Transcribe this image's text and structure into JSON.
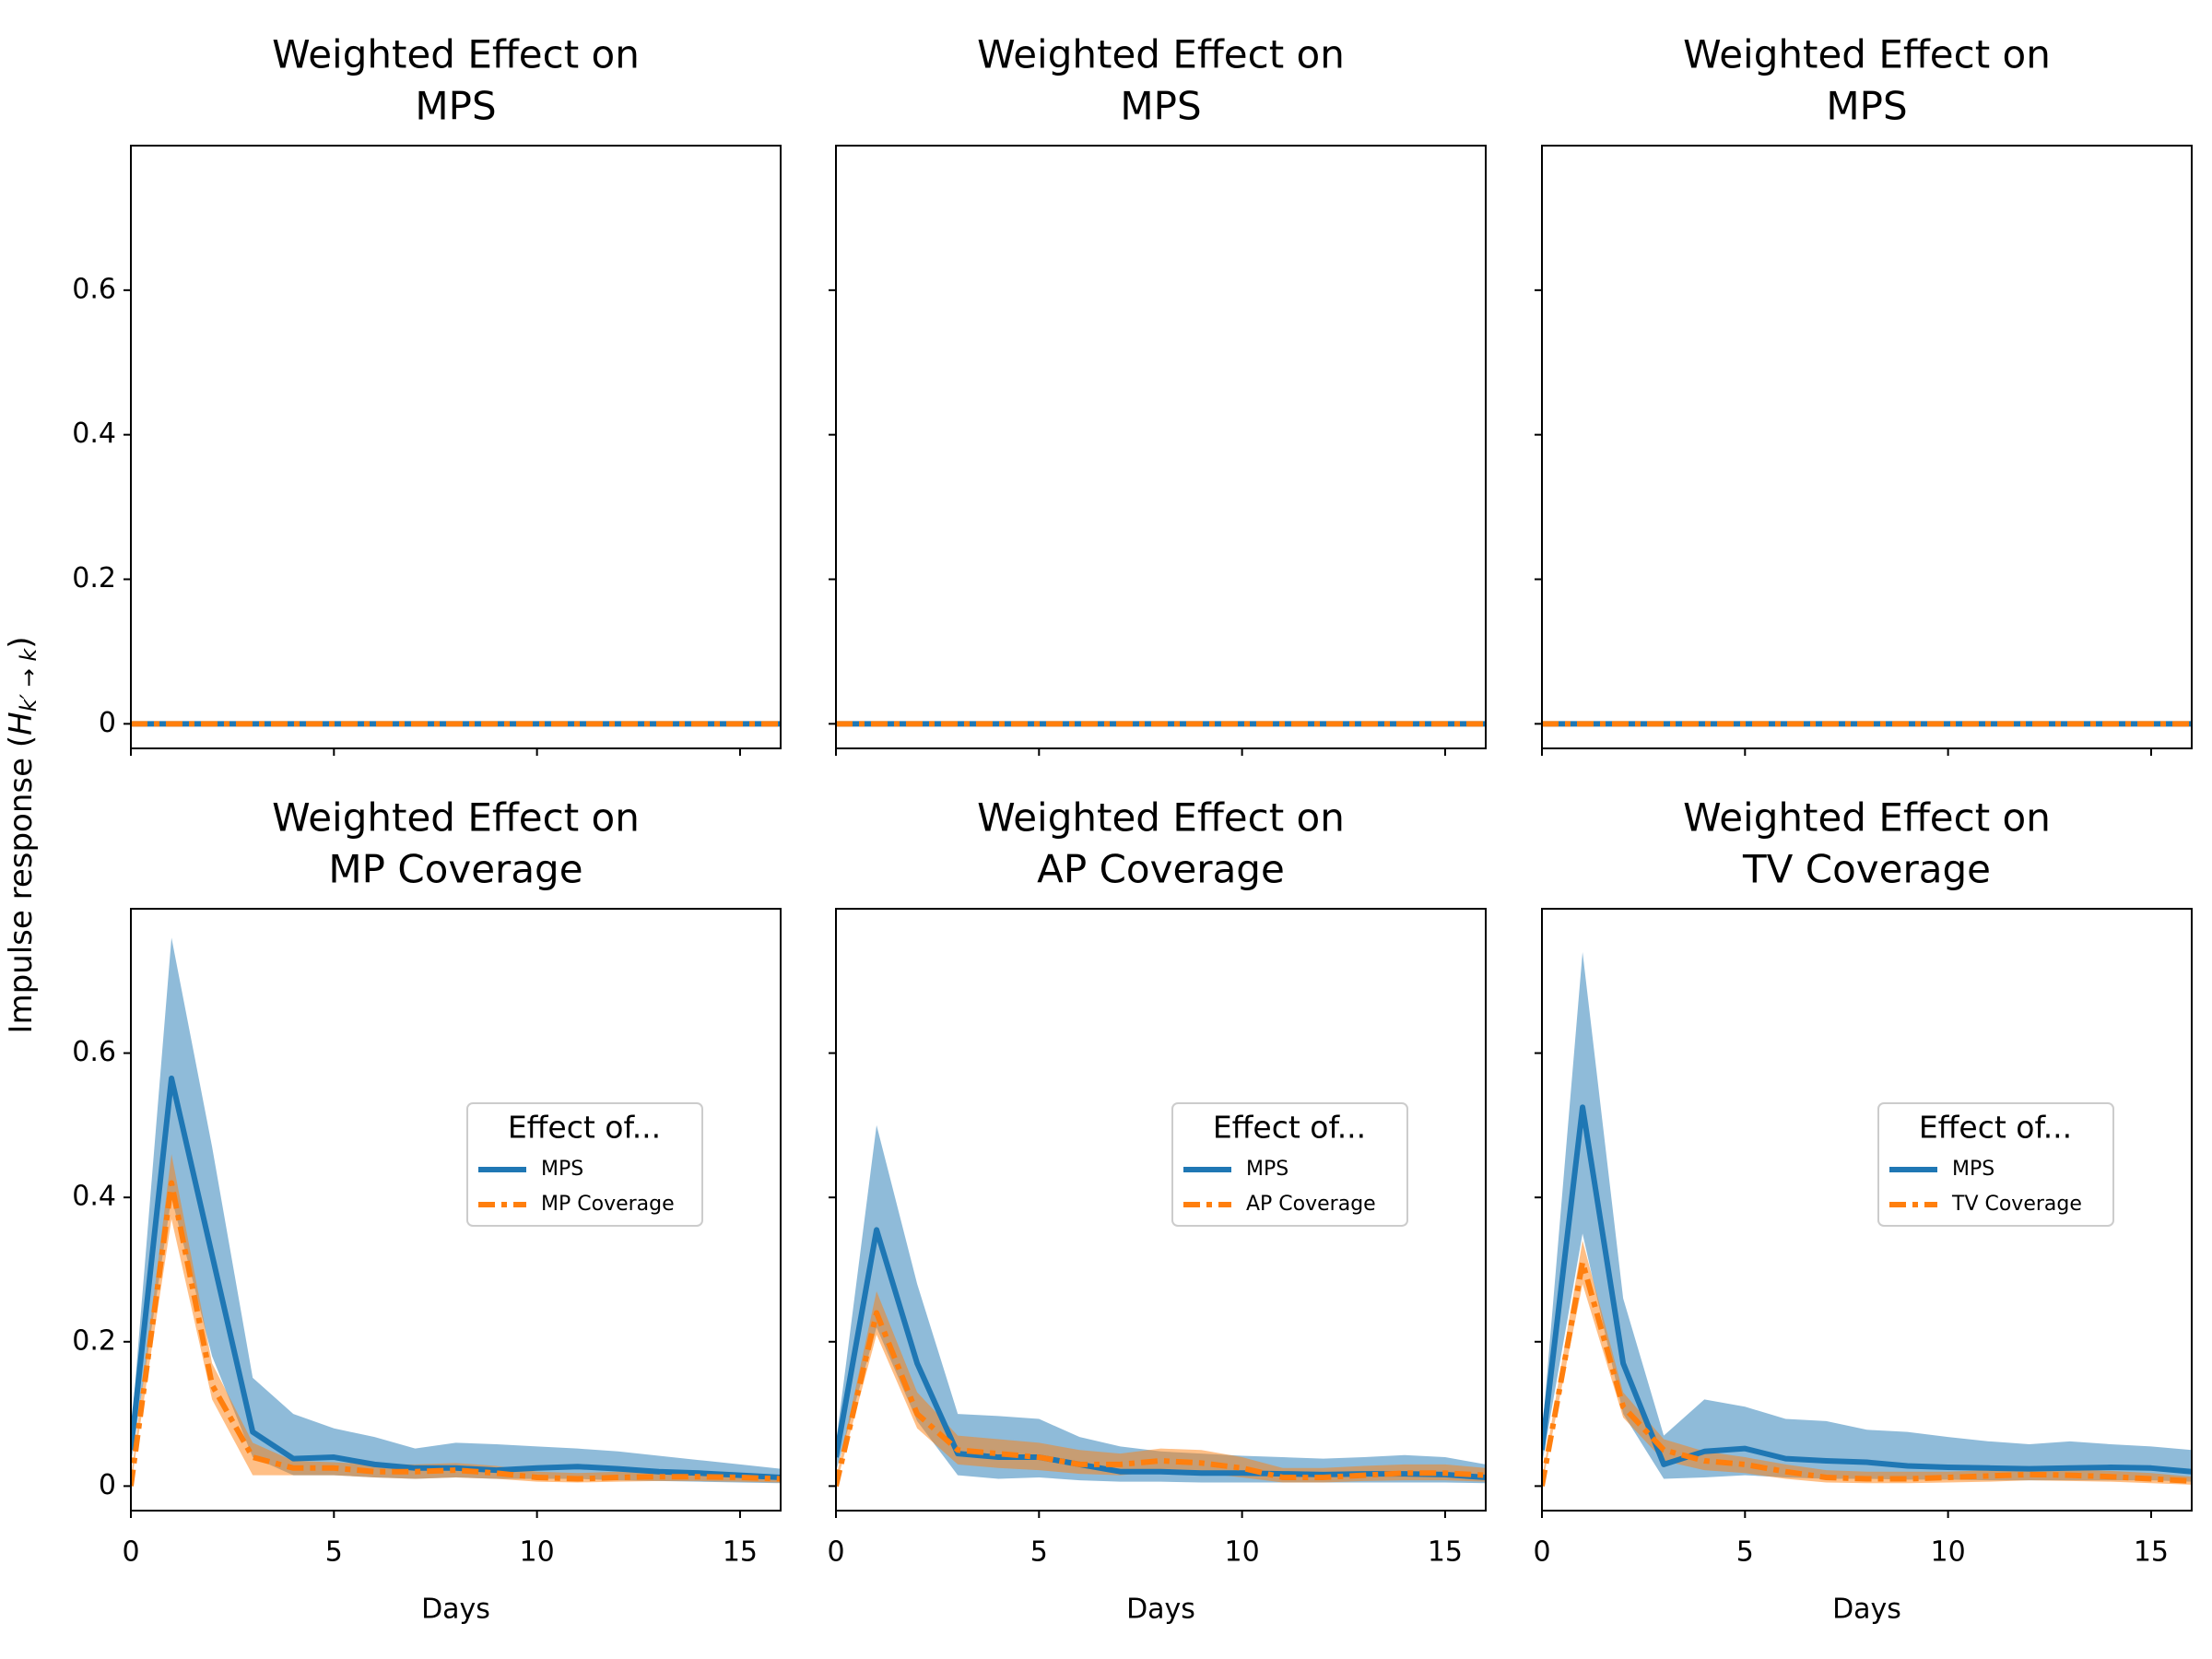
{
  "ylabel": [
    "Impulse response (",
    "H",
    "k′ → k",
    ")"
  ],
  "chart_data": [
    {
      "type": "line",
      "title": [
        "Weighted Effect on",
        "MPS"
      ],
      "x": [
        0,
        1,
        2,
        3,
        4,
        5,
        6,
        7,
        8,
        9,
        10,
        11,
        12,
        13,
        14,
        15,
        16
      ],
      "xlim": [
        0,
        16
      ],
      "ylim": [
        -0.034,
        0.8
      ],
      "xticks": [
        0,
        5,
        10,
        15
      ],
      "yticks": [
        0,
        0.2,
        0.4,
        0.6
      ],
      "series": [
        {
          "color": "#1f77b4",
          "style": "solid",
          "values": [
            0,
            0,
            0,
            0,
            0,
            0,
            0,
            0,
            0,
            0,
            0,
            0,
            0,
            0,
            0,
            0,
            0
          ]
        },
        {
          "color": "#ff7f0e",
          "style": "dashed",
          "values": [
            0,
            0,
            0,
            0,
            0,
            0,
            0,
            0,
            0,
            0,
            0,
            0,
            0,
            0,
            0,
            0,
            0
          ]
        }
      ]
    },
    {
      "type": "line",
      "title": [
        "Weighted Effect on",
        "MPS"
      ],
      "x": [
        0,
        1,
        2,
        3,
        4,
        5,
        6,
        7,
        8,
        9,
        10,
        11,
        12,
        13,
        14,
        15,
        16
      ],
      "xlim": [
        0,
        16
      ],
      "ylim": [
        -0.034,
        0.8
      ],
      "xticks": [
        0,
        5,
        10,
        15
      ],
      "yticks": [
        0,
        0.2,
        0.4,
        0.6
      ],
      "series": [
        {
          "color": "#1f77b4",
          "style": "solid",
          "values": [
            0,
            0,
            0,
            0,
            0,
            0,
            0,
            0,
            0,
            0,
            0,
            0,
            0,
            0,
            0,
            0,
            0
          ]
        },
        {
          "color": "#ff7f0e",
          "style": "dashed",
          "values": [
            0,
            0,
            0,
            0,
            0,
            0,
            0,
            0,
            0,
            0,
            0,
            0,
            0,
            0,
            0,
            0,
            0
          ]
        }
      ]
    },
    {
      "type": "line",
      "title": [
        "Weighted Effect on",
        "MPS"
      ],
      "x": [
        0,
        1,
        2,
        3,
        4,
        5,
        6,
        7,
        8,
        9,
        10,
        11,
        12,
        13,
        14,
        15,
        16
      ],
      "xlim": [
        0,
        16
      ],
      "ylim": [
        -0.034,
        0.8
      ],
      "xticks": [
        0,
        5,
        10,
        15
      ],
      "yticks": [
        0,
        0.2,
        0.4,
        0.6
      ],
      "series": [
        {
          "color": "#1f77b4",
          "style": "solid",
          "values": [
            0,
            0,
            0,
            0,
            0,
            0,
            0,
            0,
            0,
            0,
            0,
            0,
            0,
            0,
            0,
            0,
            0
          ]
        },
        {
          "color": "#ff7f0e",
          "style": "dashed",
          "values": [
            0,
            0,
            0,
            0,
            0,
            0,
            0,
            0,
            0,
            0,
            0,
            0,
            0,
            0,
            0,
            0,
            0
          ]
        }
      ]
    },
    {
      "type": "line",
      "title": [
        "Weighted Effect on",
        "MP Coverage"
      ],
      "xlabel": "Days",
      "x": [
        0,
        1,
        2,
        3,
        4,
        5,
        6,
        7,
        8,
        9,
        10,
        11,
        12,
        13,
        14,
        15,
        16
      ],
      "xlim": [
        0,
        16
      ],
      "ylim": [
        -0.034,
        0.8
      ],
      "xticks": [
        0,
        5,
        10,
        15
      ],
      "yticks": [
        0,
        0.2,
        0.4,
        0.6
      ],
      "legend_title": "Effect of...",
      "legend": "right",
      "series": [
        {
          "name": "MPS",
          "color": "#1f77b4",
          "style": "solid",
          "values": [
            0.05,
            0.565,
            0.32,
            0.075,
            0.038,
            0.04,
            0.03,
            0.025,
            0.025,
            0.022,
            0.025,
            0.027,
            0.024,
            0.02,
            0.018,
            0.015,
            0.012
          ],
          "upper": [
            0.07,
            0.76,
            0.47,
            0.15,
            0.1,
            0.08,
            0.068,
            0.052,
            0.06,
            0.058,
            0.055,
            0.052,
            0.048,
            0.042,
            0.036,
            0.03,
            0.024
          ],
          "lower": [
            0.03,
            0.4,
            0.18,
            0.04,
            0.015,
            0.015,
            0.012,
            0.01,
            0.012,
            0.01,
            0.01,
            0.01,
            0.008,
            0.007,
            0.006,
            0.005,
            0.004
          ]
        },
        {
          "name": "MP Coverage",
          "color": "#ff7f0e",
          "style": "dashed",
          "values": [
            0,
            0.42,
            0.14,
            0.04,
            0.025,
            0.025,
            0.02,
            0.02,
            0.022,
            0.018,
            0.012,
            0.01,
            0.012,
            0.013,
            0.013,
            0.012,
            0.01
          ],
          "upper": [
            0.01,
            0.46,
            0.17,
            0.06,
            0.035,
            0.033,
            0.03,
            0.03,
            0.032,
            0.028,
            0.02,
            0.018,
            0.02,
            0.02,
            0.02,
            0.018,
            0.015
          ],
          "lower": [
            0,
            0.37,
            0.12,
            0.015,
            0.015,
            0.015,
            0.012,
            0.01,
            0.012,
            0.01,
            0.006,
            0.005,
            0.006,
            0.007,
            0.007,
            0.006,
            0.005
          ]
        }
      ]
    },
    {
      "type": "line",
      "title": [
        "Weighted Effect on",
        "AP Coverage"
      ],
      "xlabel": "Days",
      "x": [
        0,
        1,
        2,
        3,
        4,
        5,
        6,
        7,
        8,
        9,
        10,
        11,
        12,
        13,
        14,
        15,
        16
      ],
      "xlim": [
        0,
        16
      ],
      "ylim": [
        -0.034,
        0.8
      ],
      "xticks": [
        0,
        5,
        10,
        15
      ],
      "yticks": [
        0,
        0.2,
        0.4,
        0.6
      ],
      "legend_title": "Effect of...",
      "legend": "right",
      "series": [
        {
          "name": "MPS",
          "color": "#1f77b4",
          "style": "solid",
          "values": [
            0.04,
            0.355,
            0.17,
            0.045,
            0.04,
            0.04,
            0.03,
            0.02,
            0.02,
            0.018,
            0.018,
            0.017,
            0.016,
            0.017,
            0.017,
            0.016,
            0.012
          ],
          "upper": [
            0.06,
            0.5,
            0.28,
            0.1,
            0.097,
            0.093,
            0.068,
            0.055,
            0.048,
            0.045,
            0.042,
            0.04,
            0.038,
            0.04,
            0.043,
            0.04,
            0.03
          ],
          "lower": [
            0.02,
            0.22,
            0.09,
            0.015,
            0.01,
            0.012,
            0.008,
            0.006,
            0.006,
            0.005,
            0.005,
            0.005,
            0.005,
            0.005,
            0.005,
            0.005,
            0.004
          ]
        },
        {
          "name": "AP Coverage",
          "color": "#ff7f0e",
          "style": "dashed",
          "values": [
            0,
            0.24,
            0.1,
            0.05,
            0.045,
            0.04,
            0.03,
            0.03,
            0.035,
            0.032,
            0.025,
            0.012,
            0.012,
            0.015,
            0.018,
            0.018,
            0.015
          ],
          "upper": [
            0.01,
            0.27,
            0.13,
            0.07,
            0.065,
            0.06,
            0.05,
            0.045,
            0.052,
            0.05,
            0.04,
            0.025,
            0.025,
            0.028,
            0.03,
            0.03,
            0.025
          ],
          "lower": [
            0,
            0.21,
            0.08,
            0.03,
            0.025,
            0.022,
            0.017,
            0.015,
            0.02,
            0.018,
            0.012,
            0.005,
            0.005,
            0.007,
            0.008,
            0.008,
            0.006
          ]
        }
      ]
    },
    {
      "type": "line",
      "title": [
        "Weighted Effect on",
        "TV Coverage"
      ],
      "xlabel": "Days",
      "x": [
        0,
        1,
        2,
        3,
        4,
        5,
        6,
        7,
        8,
        9,
        10,
        11,
        12,
        13,
        14,
        15,
        16
      ],
      "xlim": [
        0,
        16
      ],
      "ylim": [
        -0.034,
        0.8
      ],
      "xticks": [
        0,
        5,
        10,
        15
      ],
      "yticks": [
        0,
        0.2,
        0.4,
        0.6
      ],
      "legend_title": "Effect of...",
      "legend": "right",
      "series": [
        {
          "name": "MPS",
          "color": "#1f77b4",
          "style": "solid",
          "values": [
            0.05,
            0.525,
            0.17,
            0.03,
            0.048,
            0.052,
            0.038,
            0.035,
            0.033,
            0.028,
            0.026,
            0.025,
            0.024,
            0.025,
            0.026,
            0.025,
            0.02
          ],
          "upper": [
            0.07,
            0.74,
            0.26,
            0.07,
            0.12,
            0.11,
            0.093,
            0.09,
            0.078,
            0.075,
            0.068,
            0.062,
            0.058,
            0.062,
            0.058,
            0.055,
            0.05
          ],
          "lower": [
            0.03,
            0.35,
            0.1,
            0.01,
            0.012,
            0.015,
            0.012,
            0.01,
            0.01,
            0.009,
            0.009,
            0.008,
            0.008,
            0.008,
            0.008,
            0.008,
            0.006
          ]
        },
        {
          "name": "TV Coverage",
          "color": "#ff7f0e",
          "style": "dashed",
          "values": [
            0,
            0.31,
            0.11,
            0.05,
            0.035,
            0.03,
            0.02,
            0.012,
            0.01,
            0.01,
            0.012,
            0.014,
            0.016,
            0.015,
            0.013,
            0.01,
            0.007
          ],
          "upper": [
            0.01,
            0.34,
            0.13,
            0.065,
            0.048,
            0.04,
            0.03,
            0.022,
            0.02,
            0.02,
            0.02,
            0.022,
            0.024,
            0.023,
            0.021,
            0.018,
            0.013
          ],
          "lower": [
            0,
            0.28,
            0.095,
            0.035,
            0.022,
            0.018,
            0.01,
            0.005,
            0.004,
            0.004,
            0.005,
            0.006,
            0.008,
            0.007,
            0.006,
            0.004,
            0.002
          ]
        }
      ]
    }
  ]
}
